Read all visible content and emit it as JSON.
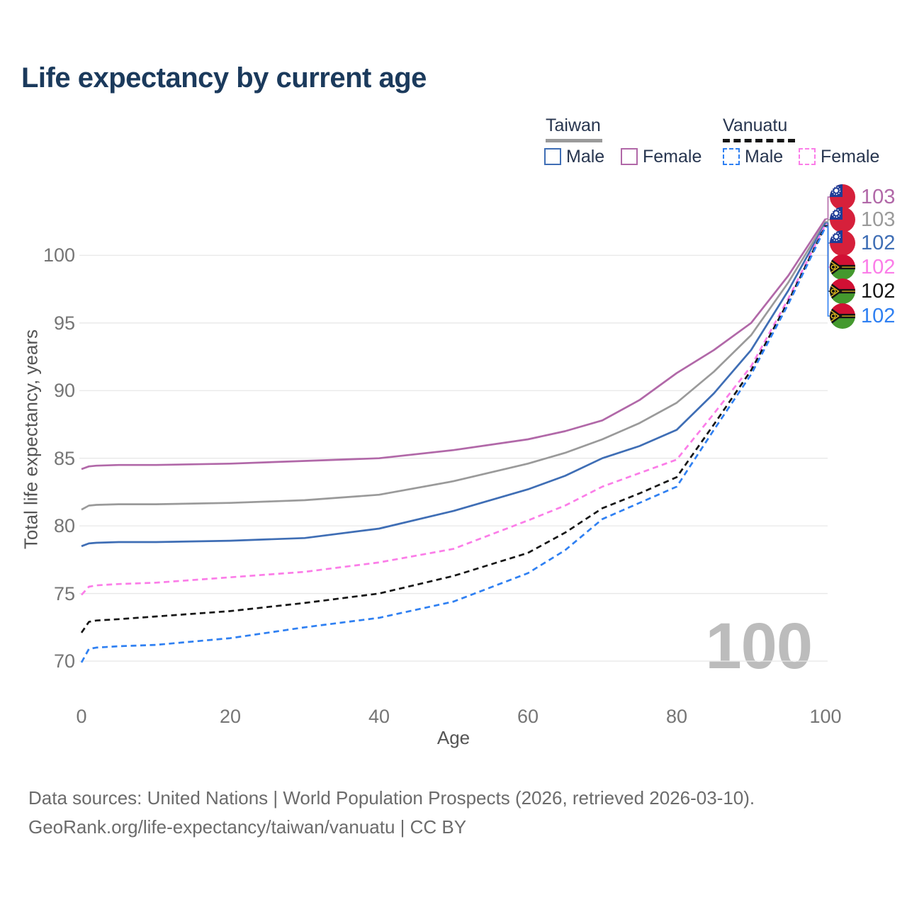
{
  "title": "Life expectancy by current age",
  "colors": {
    "title_text": "#1b3a5c",
    "legend_text": "#27354f",
    "taiwan_male": "#3f6eb5",
    "taiwan_female": "#b168a8",
    "taiwan_total": "#9a9a9a",
    "vanuatu_male": "#2f80f2",
    "vanuatu_female": "#fb7de8",
    "vanuatu_total": "#161616",
    "grid": "#e8e8e8",
    "tick_text": "#757575",
    "axis_title_text": "#555555",
    "watermark_text": "#bcbcbc",
    "footer_text": "#6b6b6b"
  },
  "legend": {
    "groups": [
      {
        "country": "Taiwan",
        "line_style": "solid",
        "underline_color": "#9a9a9a",
        "items": [
          {
            "label": "Male",
            "color": "#3f6eb5",
            "dashed": false
          },
          {
            "label": "Female",
            "color": "#b168a8",
            "dashed": false
          }
        ]
      },
      {
        "country": "Vanuatu",
        "line_style": "dashed",
        "underline_color": "#161616",
        "items": [
          {
            "label": "Male",
            "color": "#2f80f2",
            "dashed": true
          },
          {
            "label": "Female",
            "color": "#fb7de8",
            "dashed": true
          }
        ]
      }
    ]
  },
  "chart_data": {
    "type": "line",
    "title": "Life expectancy by current age",
    "xlabel": "Age",
    "ylabel": "Total life expectancy, years",
    "x_ticks": [
      0,
      20,
      40,
      60,
      80,
      100
    ],
    "y_ticks": [
      70,
      75,
      80,
      85,
      90,
      95,
      100
    ],
    "xlim": [
      0,
      100
    ],
    "ylim": [
      69.5,
      104
    ],
    "grid": "horizontal",
    "legend_position": "top-right",
    "x": [
      0,
      1,
      2,
      5,
      10,
      20,
      30,
      40,
      50,
      60,
      65,
      70,
      75,
      80,
      85,
      90,
      95,
      100
    ],
    "series": [
      {
        "name": "Taiwan Female",
        "country": "taiwan",
        "sex": "female",
        "style": "solid",
        "color": "#b168a8",
        "end_label": "103",
        "values": [
          84.2,
          84.4,
          84.45,
          84.5,
          84.5,
          84.6,
          84.8,
          85.0,
          85.6,
          86.4,
          87.0,
          87.8,
          89.3,
          91.3,
          93.0,
          95.0,
          98.5,
          102.7
        ]
      },
      {
        "name": "Taiwan Total",
        "country": "taiwan",
        "sex": "total",
        "style": "solid",
        "color": "#9a9a9a",
        "end_label": "103",
        "values": [
          81.2,
          81.5,
          81.55,
          81.6,
          81.6,
          81.7,
          81.9,
          82.3,
          83.3,
          84.6,
          85.4,
          86.4,
          87.6,
          89.1,
          91.4,
          94.1,
          98.0,
          102.5
        ]
      },
      {
        "name": "Taiwan Male",
        "country": "taiwan",
        "sex": "male",
        "style": "solid",
        "color": "#3f6eb5",
        "end_label": "102",
        "values": [
          78.5,
          78.7,
          78.75,
          78.8,
          78.8,
          78.9,
          79.1,
          79.8,
          81.1,
          82.7,
          83.7,
          85.0,
          85.9,
          87.1,
          89.8,
          93.0,
          97.4,
          102.4
        ]
      },
      {
        "name": "Vanuatu Female",
        "country": "vanuatu",
        "sex": "female",
        "style": "dashed",
        "color": "#fb7de8",
        "end_label": "102",
        "values": [
          74.9,
          75.5,
          75.6,
          75.7,
          75.8,
          76.2,
          76.6,
          77.3,
          78.3,
          80.4,
          81.5,
          82.9,
          83.9,
          84.9,
          88.3,
          91.8,
          96.8,
          102.3
        ]
      },
      {
        "name": "Vanuatu Total",
        "country": "vanuatu",
        "sex": "total",
        "style": "dashed",
        "color": "#161616",
        "end_label": "102",
        "values": [
          72.1,
          72.9,
          73.0,
          73.1,
          73.3,
          73.7,
          74.3,
          75.0,
          76.3,
          78.0,
          79.5,
          81.3,
          82.4,
          83.6,
          87.5,
          91.5,
          96.6,
          102.2
        ]
      },
      {
        "name": "Vanuatu Male",
        "country": "vanuatu",
        "sex": "male",
        "style": "dashed",
        "color": "#2f80f2",
        "end_label": "102",
        "values": [
          69.9,
          70.9,
          71.0,
          71.1,
          71.2,
          71.7,
          72.5,
          73.2,
          74.4,
          76.5,
          78.2,
          80.5,
          81.7,
          82.9,
          87.1,
          91.2,
          96.4,
          102.1
        ]
      }
    ]
  },
  "end_labels": [
    {
      "country": "taiwan",
      "value": "103",
      "color": "#b168a8"
    },
    {
      "country": "taiwan",
      "value": "103",
      "color": "#9a9a9a"
    },
    {
      "country": "taiwan",
      "value": "102",
      "color": "#3f6eb5"
    },
    {
      "country": "vanuatu",
      "value": "102",
      "color": "#fb7de8"
    },
    {
      "country": "vanuatu",
      "value": "102",
      "color": "#161616"
    },
    {
      "country": "vanuatu",
      "value": "102",
      "color": "#2f80f2"
    }
  ],
  "annotations": {
    "watermark": "100"
  },
  "footer": {
    "line1": "Data sources: United Nations | World Population Prospects (2026, retrieved 2026-03-10).",
    "line2": "GeoRank.org/life-expectancy/taiwan/vanuatu | CC BY"
  }
}
